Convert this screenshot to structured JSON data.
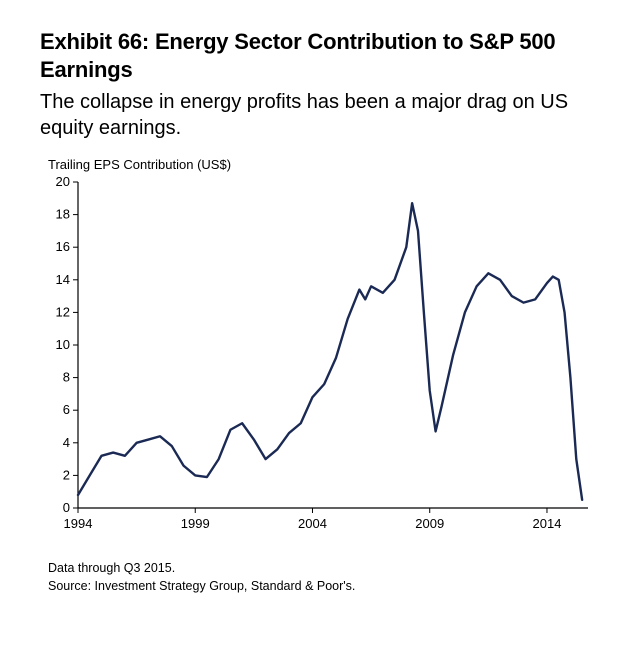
{
  "title": "Exhibit 66: Energy Sector Contribution to S&P 500 Earnings",
  "subtitle": "The collapse in energy profits has been a major drag on US equity earnings.",
  "y_axis_title": "Trailing EPS Contribution (US$)",
  "footnote1": "Data through Q3 2015.",
  "footnote2": "Source: Investment Strategy Group, Standard & Poor's.",
  "chart": {
    "type": "line",
    "line_color": "#1b2a54",
    "line_width": 2.4,
    "background_color": "#ffffff",
    "axis_color": "#000000",
    "tick_font_size": 13,
    "xlim": [
      1994,
      2015.75
    ],
    "ylim": [
      0,
      20
    ],
    "yticks": [
      0,
      2,
      4,
      6,
      8,
      10,
      12,
      14,
      16,
      18,
      20
    ],
    "xticks": [
      1994,
      1999,
      2004,
      2009,
      2014
    ],
    "series": [
      {
        "x": 1994.0,
        "y": 0.8
      },
      {
        "x": 1994.5,
        "y": 2.0
      },
      {
        "x": 1995.0,
        "y": 3.2
      },
      {
        "x": 1995.5,
        "y": 3.4
      },
      {
        "x": 1996.0,
        "y": 3.2
      },
      {
        "x": 1996.5,
        "y": 4.0
      },
      {
        "x": 1997.0,
        "y": 4.2
      },
      {
        "x": 1997.5,
        "y": 4.4
      },
      {
        "x": 1998.0,
        "y": 3.8
      },
      {
        "x": 1998.5,
        "y": 2.6
      },
      {
        "x": 1999.0,
        "y": 2.0
      },
      {
        "x": 1999.5,
        "y": 1.9
      },
      {
        "x": 2000.0,
        "y": 3.0
      },
      {
        "x": 2000.5,
        "y": 4.8
      },
      {
        "x": 2001.0,
        "y": 5.2
      },
      {
        "x": 2001.5,
        "y": 4.2
      },
      {
        "x": 2002.0,
        "y": 3.0
      },
      {
        "x": 2002.5,
        "y": 3.6
      },
      {
        "x": 2003.0,
        "y": 4.6
      },
      {
        "x": 2003.5,
        "y": 5.2
      },
      {
        "x": 2004.0,
        "y": 6.8
      },
      {
        "x": 2004.5,
        "y": 7.6
      },
      {
        "x": 2005.0,
        "y": 9.2
      },
      {
        "x": 2005.5,
        "y": 11.6
      },
      {
        "x": 2006.0,
        "y": 13.4
      },
      {
        "x": 2006.25,
        "y": 12.8
      },
      {
        "x": 2006.5,
        "y": 13.6
      },
      {
        "x": 2007.0,
        "y": 13.2
      },
      {
        "x": 2007.5,
        "y": 14.0
      },
      {
        "x": 2008.0,
        "y": 16.0
      },
      {
        "x": 2008.25,
        "y": 18.7
      },
      {
        "x": 2008.5,
        "y": 17.0
      },
      {
        "x": 2008.75,
        "y": 12.0
      },
      {
        "x": 2009.0,
        "y": 7.2
      },
      {
        "x": 2009.25,
        "y": 4.7
      },
      {
        "x": 2009.5,
        "y": 6.2
      },
      {
        "x": 2010.0,
        "y": 9.4
      },
      {
        "x": 2010.5,
        "y": 12.0
      },
      {
        "x": 2011.0,
        "y": 13.6
      },
      {
        "x": 2011.5,
        "y": 14.4
      },
      {
        "x": 2012.0,
        "y": 14.0
      },
      {
        "x": 2012.5,
        "y": 13.0
      },
      {
        "x": 2013.0,
        "y": 12.6
      },
      {
        "x": 2013.5,
        "y": 12.8
      },
      {
        "x": 2014.0,
        "y": 13.8
      },
      {
        "x": 2014.25,
        "y": 14.2
      },
      {
        "x": 2014.5,
        "y": 14.0
      },
      {
        "x": 2014.75,
        "y": 12.0
      },
      {
        "x": 2015.0,
        "y": 8.0
      },
      {
        "x": 2015.25,
        "y": 3.0
      },
      {
        "x": 2015.5,
        "y": 0.5
      }
    ]
  }
}
